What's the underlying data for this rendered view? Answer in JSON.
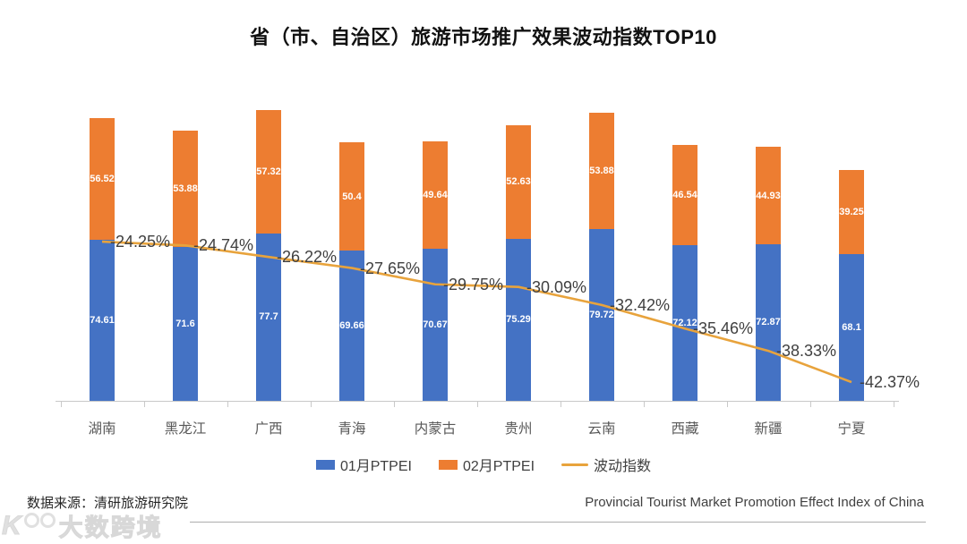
{
  "title": "省（市、自治区）旅游市场推广效果波动指数TOP10",
  "chart_data": {
    "type": "bar",
    "subtype": "stacked-bars-with-line",
    "categories": [
      "湖南",
      "黑龙江",
      "广西",
      "青海",
      "内蒙古",
      "贵州",
      "云南",
      "西藏",
      "新疆",
      "宁夏"
    ],
    "series": [
      {
        "name": "01月PTPEI",
        "type": "bar",
        "color": "#4472C4",
        "values": [
          74.61,
          71.6,
          77.7,
          69.66,
          70.67,
          75.29,
          79.72,
          72.12,
          72.87,
          68.1
        ],
        "labels": [
          "74.61",
          "71.6",
          "77.7",
          "69.66",
          "70.67",
          "75.29",
          "79.72",
          "72.12",
          "72.87",
          "68.1"
        ]
      },
      {
        "name": "02月PTPEI",
        "type": "bar",
        "color": "#ED7D31",
        "values": [
          56.52,
          53.88,
          57.32,
          50.4,
          49.64,
          52.63,
          53.88,
          46.54,
          44.93,
          39.25
        ],
        "labels": [
          "56.52",
          "53.88",
          "57.32",
          "50.4",
          "49.64",
          "52.63",
          "53.88",
          "46.54",
          "44.93",
          "39.25"
        ]
      },
      {
        "name": "波动指数",
        "type": "line",
        "color": "#E8A33C",
        "values_pct": [
          -24.25,
          -24.74,
          -26.22,
          -27.65,
          -29.75,
          -30.09,
          -32.42,
          -35.46,
          -38.33,
          -42.37
        ],
        "labels": [
          "-24.25%",
          "-24.74%",
          "-26.22%",
          "-27.65%",
          "-29.75%",
          "-30.09%",
          "-32.42%",
          "-35.46%",
          "-38.33%",
          "-42.37%"
        ]
      }
    ],
    "title": "省（市、自治区）旅游市场推广效果波动指数TOP10",
    "xlabel": "",
    "ylabel": "",
    "grid": false,
    "legend_position": "bottom",
    "legend": [
      {
        "label": "01月PTPEI",
        "swatch": "square",
        "color": "#4472C4"
      },
      {
        "label": "02月PTPEI",
        "swatch": "square",
        "color": "#ED7D31"
      },
      {
        "label": "波动指数",
        "swatch": "line",
        "color": "#E8A33C"
      }
    ]
  },
  "footer": {
    "source": "数据来源：清研旅游研究院",
    "subtitle_en": "Provincial Tourist Market Promotion Effect Index of China"
  },
  "watermark": {
    "logo": "dashukuajing-logo",
    "text": "大数跨境"
  },
  "colors": {
    "bar_jan": "#4472C4",
    "bar_feb": "#ED7D31",
    "line": "#E8A33C",
    "axis": "#c9c9c9",
    "label_dark": "#404040",
    "category": "#595959"
  }
}
